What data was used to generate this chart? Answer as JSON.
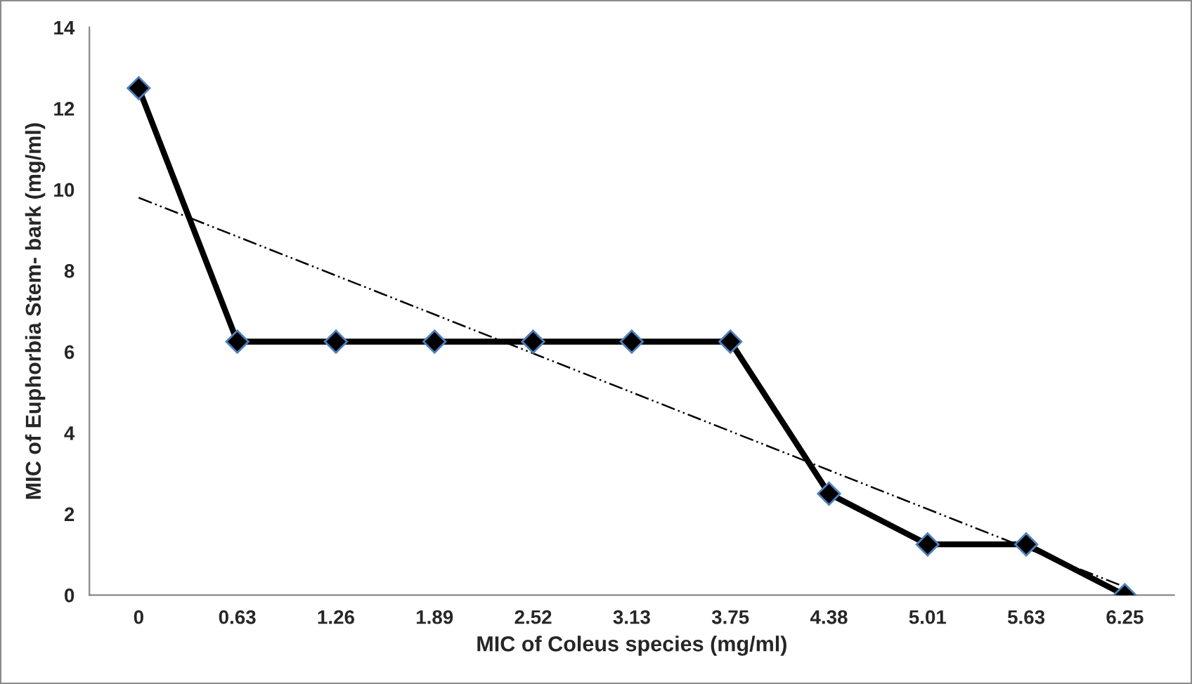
{
  "chart_data": {
    "type": "line",
    "xlabel": "MIC of Coleus species (mg/ml)",
    "ylabel": "MIC of Euphorbia Stem- bark (mg/ml)",
    "categories": [
      "0",
      "0.63",
      "1.26",
      "1.89",
      "2.52",
      "3.13",
      "3.75",
      "4.38",
      "5.01",
      "5.63",
      "6.25"
    ],
    "series": [
      {
        "color": "#000000",
        "values": [
          12.5,
          6.25,
          6.25,
          6.25,
          6.25,
          6.25,
          6.25,
          2.5,
          1.25,
          1.25,
          0
        ],
        "marker": "diamond",
        "line_style": "solid"
      },
      {
        "color": "#000000",
        "x": [
          "0",
          "6.25"
        ],
        "values": [
          9.8,
          0.2
        ],
        "marker": "none",
        "line_style": "dashdotdot"
      }
    ],
    "ylim": [
      0,
      14
    ],
    "yticks": [
      0,
      2,
      4,
      6,
      8,
      10,
      12,
      14
    ],
    "grid": false,
    "legend": false
  }
}
